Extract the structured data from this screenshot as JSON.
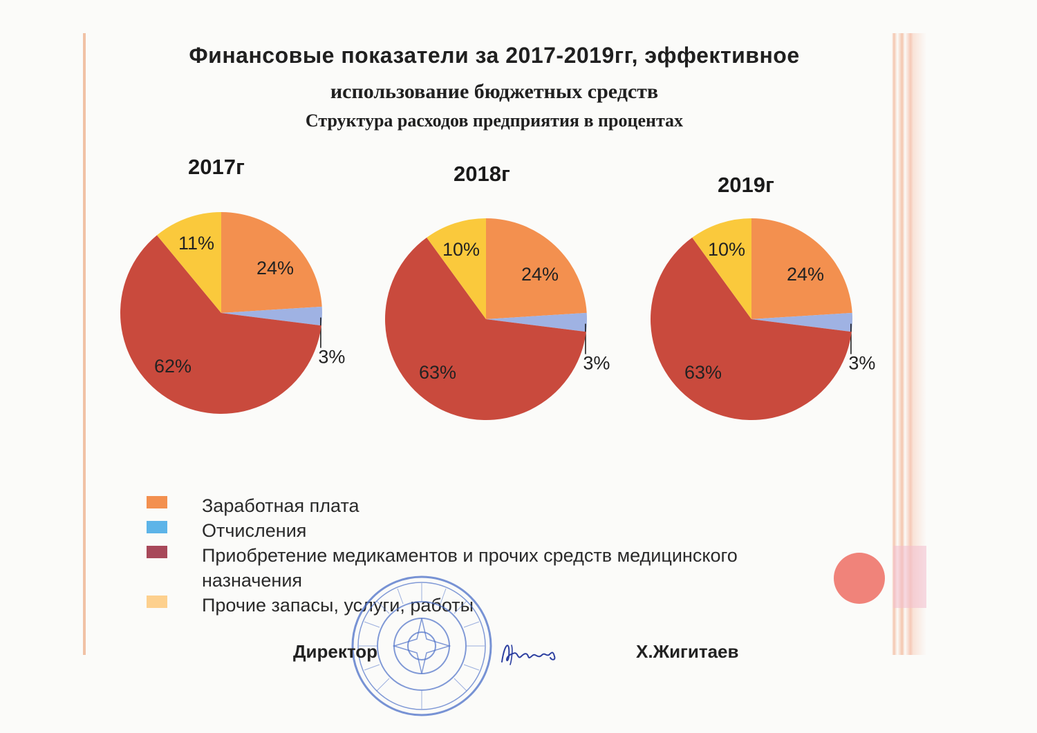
{
  "title": {
    "line1": "Финансовые показатели за 2017-2019гг,  эффективное",
    "line2": "использование бюджетных средств",
    "line3": "Структура расходов предприятия  в процентах"
  },
  "colors": {
    "salary": "#f3904f",
    "deductions": "#9fb2e3",
    "medicines": "#c94a3d",
    "other": "#fac93c"
  },
  "chart_data": [
    {
      "type": "pie",
      "title": "2017г",
      "categories": [
        "Заработная плата",
        "Отчисления",
        "Приобретение медикаментов и прочих средств медицинского назначения",
        "Прочие запасы,  услуги, работы"
      ],
      "values": [
        24,
        3,
        62,
        11
      ],
      "labels": [
        "24%",
        "3%",
        "62%",
        "11%"
      ]
    },
    {
      "type": "pie",
      "title": "2018г",
      "categories": [
        "Заработная плата",
        "Отчисления",
        "Приобретение медикаментов и прочих средств медицинского назначения",
        "Прочие запасы,  услуги, работы"
      ],
      "values": [
        24,
        3,
        63,
        10
      ],
      "labels": [
        "24%",
        "3%",
        "63%",
        "10%"
      ]
    },
    {
      "type": "pie",
      "title": "2019г",
      "categories": [
        "Заработная плата",
        "Отчисления",
        "Приобретение медикаментов и прочих средств медицинского назначения",
        "Прочие запасы,  услуги, работы"
      ],
      "values": [
        24,
        3,
        63,
        10
      ],
      "labels": [
        "24%",
        "3%",
        "63%",
        "10%"
      ]
    }
  ],
  "legend": {
    "items": [
      {
        "label": "Заработная плата",
        "color": "#f3904f"
      },
      {
        "label": "Отчисления",
        "color": "#5db4e8"
      },
      {
        "label": "Приобретение медикаментов и прочих средств медицинского назначения",
        "color": "#a8485a"
      },
      {
        "label": "Прочие запасы,  услуги, работы",
        "color": "#fdd08e"
      }
    ]
  },
  "signature": {
    "role": "Директор",
    "name": "Х.Жигитаев"
  }
}
